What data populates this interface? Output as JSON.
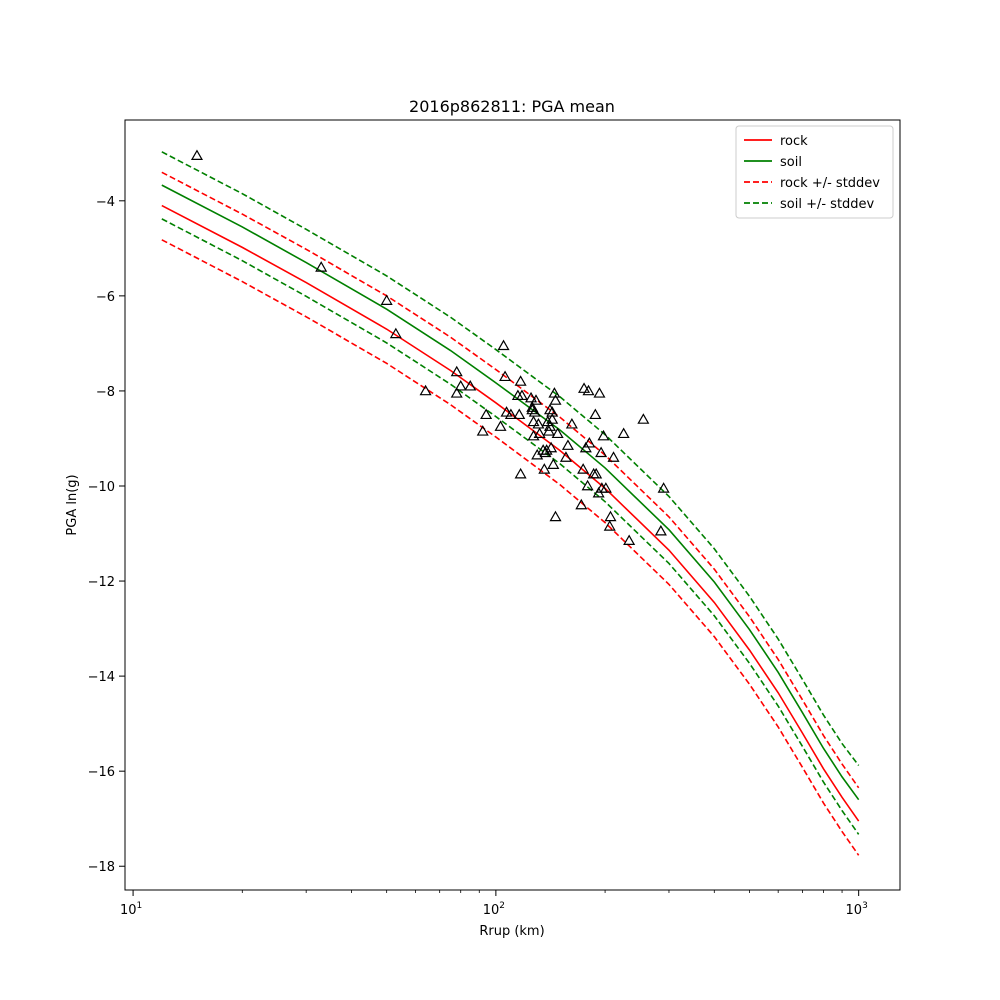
{
  "chart_data": {
    "type": "scatter",
    "title": "2016p862811: PGA mean",
    "xlabel": "Rrup (km)",
    "ylabel": "PGA ln(g)",
    "xscale": "log",
    "xlim": [
      9.5,
      1300
    ],
    "ylim": [
      -18.5,
      -2.3
    ],
    "xticks": [
      10,
      100,
      1000
    ],
    "xtick_labels": [
      [
        "10",
        "1"
      ],
      [
        "10",
        "2"
      ],
      [
        "10",
        "3"
      ]
    ],
    "yticks": [
      -18,
      -16,
      -14,
      -12,
      -10,
      -8,
      -6,
      -4
    ],
    "ytick_labels": [
      "−18",
      "−16",
      "−14",
      "−12",
      "−10",
      "−8",
      "−6",
      "−4"
    ],
    "grid": false,
    "legend_position": "top-right",
    "series": [
      {
        "name": "rock",
        "kind": "line",
        "color": "#ff0000",
        "dash": "solid",
        "x": [
          12,
          20,
          30,
          50,
          75,
          100,
          150,
          200,
          300,
          400,
          500,
          600,
          700,
          800,
          900,
          1000
        ],
        "y": [
          -4.1,
          -4.98,
          -5.72,
          -6.7,
          -7.57,
          -8.25,
          -9.25,
          -10.05,
          -11.35,
          -12.45,
          -13.45,
          -14.35,
          -15.2,
          -15.95,
          -16.55,
          -17.05
        ]
      },
      {
        "name": "soil",
        "kind": "line",
        "color": "#008000",
        "dash": "solid",
        "x": [
          12,
          20,
          30,
          50,
          75,
          100,
          150,
          200,
          300,
          400,
          500,
          600,
          700,
          800,
          900,
          1000
        ],
        "y": [
          -3.67,
          -4.55,
          -5.3,
          -6.28,
          -7.15,
          -7.83,
          -8.82,
          -9.62,
          -10.92,
          -12.02,
          -13.02,
          -13.92,
          -14.77,
          -15.52,
          -16.12,
          -16.6
        ]
      },
      {
        "name": "rock +/- stddev",
        "kind": "line",
        "color": "#ff0000",
        "dash": "dashed",
        "x": [
          12,
          20,
          30,
          50,
          75,
          100,
          150,
          200,
          300,
          400,
          500,
          600,
          700,
          800,
          900,
          1000
        ],
        "y_upper": [
          -3.4,
          -4.28,
          -5.02,
          -6.0,
          -6.87,
          -7.55,
          -8.55,
          -9.35,
          -10.65,
          -11.75,
          -12.75,
          -13.65,
          -14.5,
          -15.25,
          -15.85,
          -16.35
        ],
        "y_lower": [
          -4.82,
          -5.7,
          -6.44,
          -7.42,
          -8.29,
          -8.97,
          -9.97,
          -10.77,
          -12.07,
          -13.17,
          -14.17,
          -15.07,
          -15.92,
          -16.67,
          -17.27,
          -17.77
        ]
      },
      {
        "name": "soil +/- stddev",
        "kind": "line",
        "color": "#008000",
        "dash": "dashed",
        "x": [
          12,
          20,
          30,
          50,
          75,
          100,
          150,
          200,
          300,
          400,
          500,
          600,
          700,
          800,
          900,
          1000
        ],
        "y_upper": [
          -2.97,
          -3.85,
          -4.6,
          -5.58,
          -6.45,
          -7.13,
          -8.12,
          -8.92,
          -10.22,
          -11.32,
          -12.32,
          -13.22,
          -14.07,
          -14.82,
          -15.42,
          -15.88
        ],
        "y_lower": [
          -4.38,
          -5.26,
          -6.01,
          -6.99,
          -7.86,
          -8.54,
          -9.53,
          -10.33,
          -11.63,
          -12.73,
          -13.73,
          -14.63,
          -15.48,
          -16.23,
          -16.83,
          -17.33
        ]
      }
    ],
    "observations": {
      "marker": "open-triangle",
      "color": "#000000",
      "x": [
        15,
        33,
        50,
        53,
        64,
        78,
        78,
        80,
        85,
        92,
        94,
        103,
        105,
        106,
        107,
        110,
        115,
        116,
        117,
        117,
        118,
        125,
        126,
        126,
        127,
        127,
        128,
        129,
        130,
        131,
        132,
        135,
        136,
        137,
        138,
        139,
        140,
        141,
        141,
        142,
        143,
        143,
        144,
        145,
        146,
        146,
        148,
        156,
        158,
        162,
        172,
        174,
        175,
        177,
        179,
        180,
        181,
        186,
        188,
        189,
        192,
        193,
        195,
        196,
        198,
        201,
        206,
        207,
        211,
        225,
        233,
        255,
        285,
        290
      ],
      "y": [
        -3.05,
        -5.4,
        -6.1,
        -6.8,
        -8.0,
        -7.6,
        -8.05,
        -7.9,
        -7.9,
        -8.85,
        -8.5,
        -8.75,
        -7.05,
        -7.7,
        -8.45,
        -8.5,
        -8.1,
        -8.5,
        -7.8,
        -9.75,
        -8.1,
        -8.15,
        -8.35,
        -8.4,
        -8.65,
        -8.95,
        -8.45,
        -8.2,
        -9.35,
        -8.7,
        -8.9,
        -9.25,
        -9.65,
        -9.3,
        -9.25,
        -8.65,
        -8.85,
        -8.4,
        -8.75,
        -9.2,
        -8.45,
        -8.6,
        -9.55,
        -8.05,
        -10.65,
        -8.2,
        -8.9,
        -9.4,
        -9.15,
        -8.7,
        -10.4,
        -9.65,
        -7.95,
        -9.2,
        -10.0,
        -8.0,
        -9.1,
        -9.75,
        -8.5,
        -9.75,
        -10.15,
        -8.05,
        -9.3,
        -10.05,
        -8.95,
        -10.05,
        -10.85,
        -10.65,
        -9.4,
        -8.9,
        -11.15,
        -8.6,
        -10.95,
        -10.05
      ]
    }
  }
}
